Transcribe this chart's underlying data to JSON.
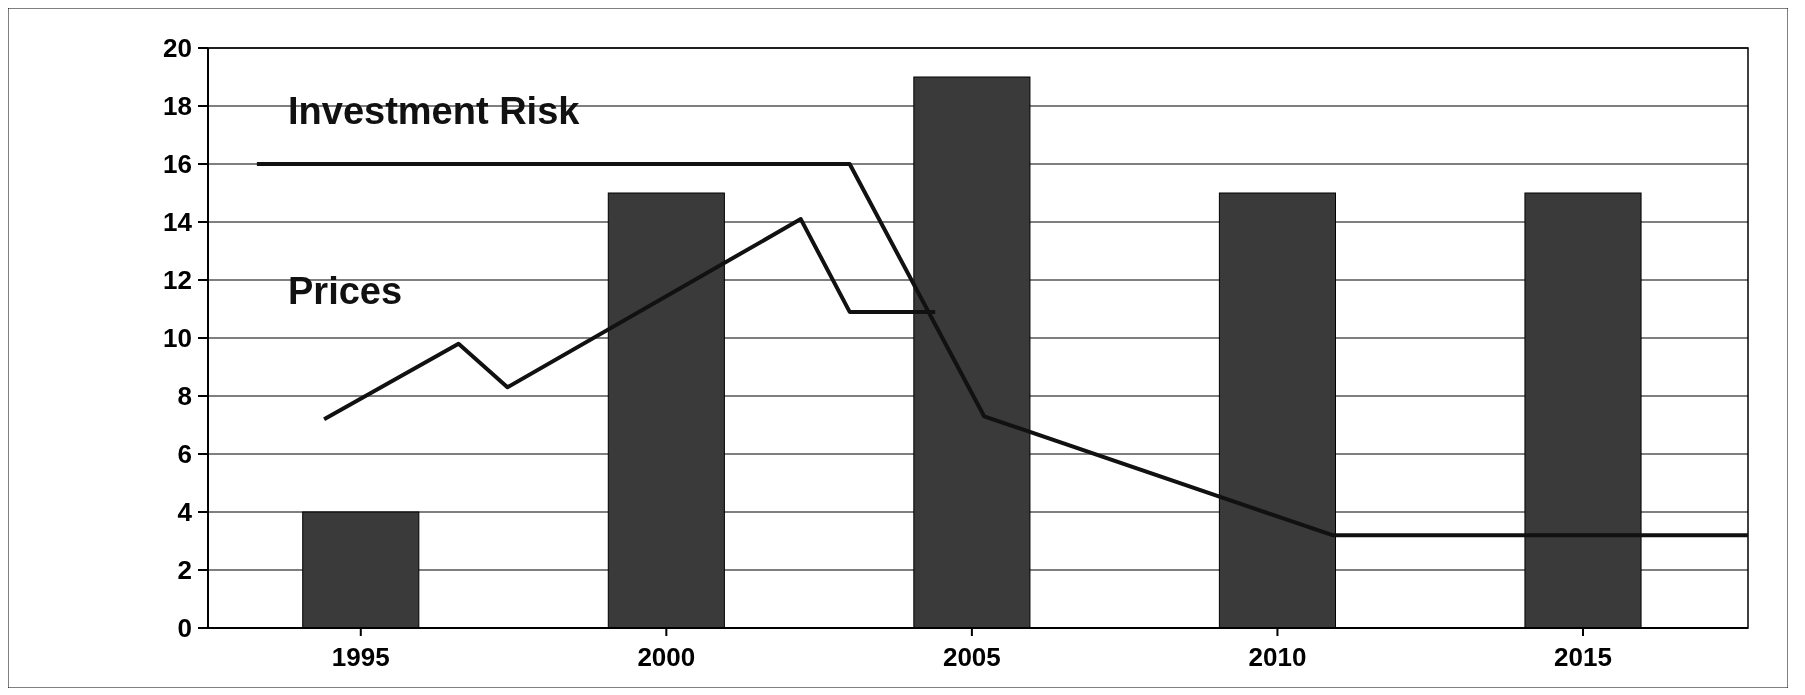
{
  "chart_data": {
    "type": "bar",
    "x": [
      1995,
      2000,
      2005,
      2010,
      2015
    ],
    "values": [
      4,
      15,
      19,
      15,
      15
    ],
    "color": "#3a3a3a",
    "series": [
      {
        "type": "line",
        "name": "Investment Risk",
        "color": "#111111",
        "x": [
          1993.3,
          2003,
          2005.2,
          2010.9,
          2017.7
        ],
        "values": [
          16,
          16,
          7.3,
          3.2,
          3.2
        ]
      },
      {
        "type": "line",
        "name": "Prices",
        "color": "#111111",
        "x": [
          1994.4,
          1996.6,
          1997.4,
          2002.2,
          2003,
          2004.4
        ],
        "values": [
          7.2,
          9.8,
          8.3,
          14.1,
          10.9,
          10.9
        ]
      }
    ],
    "xlim": [
      1992.5,
      2017.7
    ],
    "xticks": [
      1995,
      2000,
      2005,
      2010,
      2015
    ],
    "ylim": [
      0,
      20
    ],
    "yticks": [
      0,
      2,
      4,
      6,
      8,
      10,
      12,
      14,
      16,
      18,
      20
    ],
    "grid": "y",
    "marker": "none",
    "line_style": "solid"
  }
}
